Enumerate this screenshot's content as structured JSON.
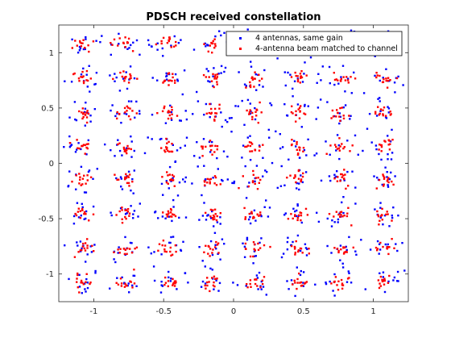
{
  "chart_data": {
    "type": "scatter",
    "title": "PDSCH received constellation",
    "xlabel": "",
    "ylabel": "",
    "xlim": [
      -1.25,
      1.25
    ],
    "ylim": [
      -1.25,
      1.25
    ],
    "xticks": [
      -1,
      -0.5,
      0,
      0.5,
      1
    ],
    "yticks": [
      -1,
      -0.5,
      0,
      0.5,
      1
    ],
    "xtick_labels": [
      "-1",
      "-0.5",
      "0",
      "0.5",
      "1"
    ],
    "ytick_labels": [
      "-1",
      "-0.5",
      "0",
      "0.5",
      "1"
    ],
    "grid": false,
    "legend_position": "top-right",
    "constellation_levels": [
      -1.08,
      -0.77,
      -0.46,
      -0.15,
      0.15,
      0.46,
      0.77,
      1.08
    ],
    "series": [
      {
        "name": "4 antennas, same gain",
        "color": "#0000ff",
        "marker": "dot",
        "spread": 0.07,
        "points_per_symbol": 12
      },
      {
        "name": "4-antenna beam matched to channel",
        "color": "#ff0000",
        "marker": "dot",
        "spread": 0.035,
        "points_per_symbol": 14
      }
    ]
  }
}
